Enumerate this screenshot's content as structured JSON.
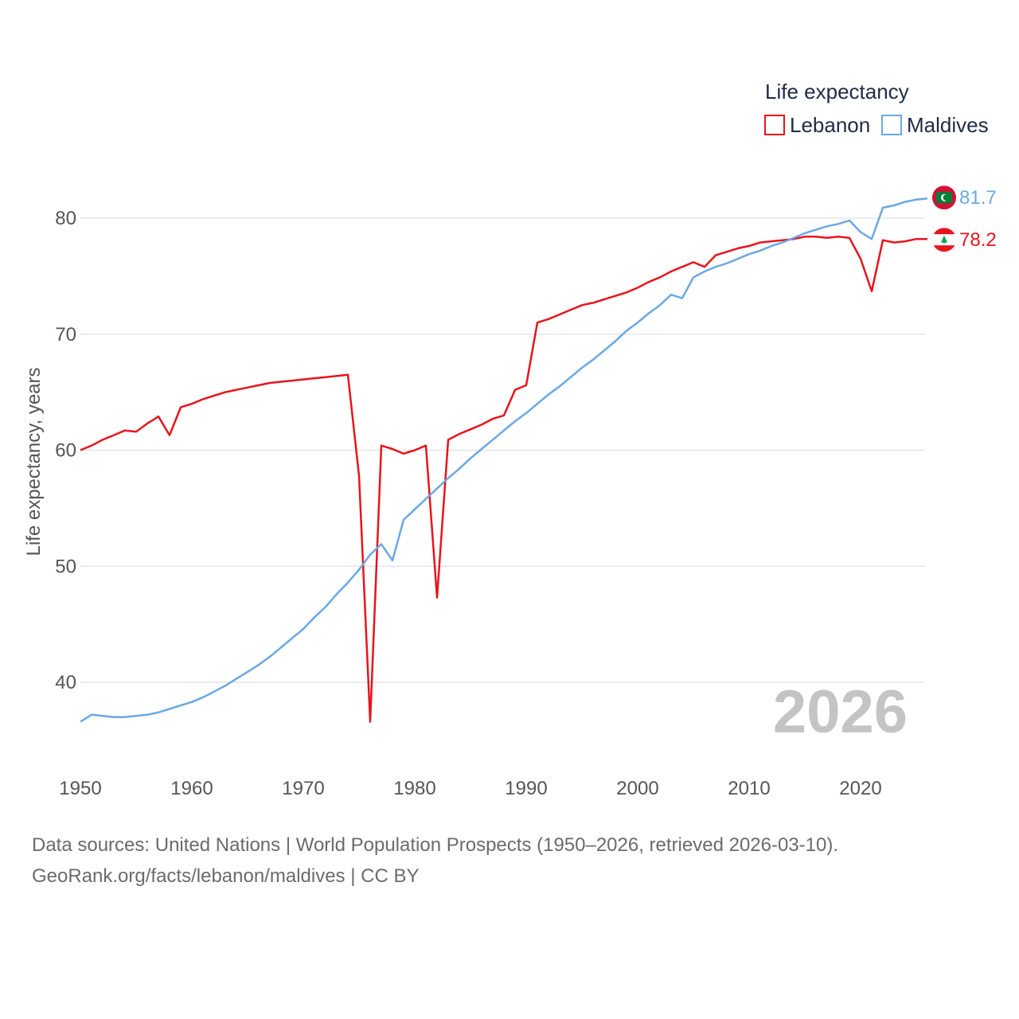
{
  "chart_data": {
    "type": "line",
    "ylabel": "Life expectancy, years",
    "xlabel": "",
    "xlim": [
      1950,
      2026
    ],
    "ylim": [
      35,
      85
    ],
    "xticks": [
      1950,
      1960,
      1970,
      1980,
      1990,
      2000,
      2010,
      2020
    ],
    "yticks": [
      40,
      50,
      60,
      70,
      80
    ],
    "grid": true,
    "legend": {
      "title": "Life expectancy",
      "placement": "top-right"
    },
    "current_year": "2026",
    "series": [
      {
        "name": "Lebanon",
        "color": "#e8141c",
        "end_label": "78.2",
        "flag": "lebanon-flag-icon",
        "points": [
          [
            1950,
            60.0
          ],
          [
            1951,
            60.4
          ],
          [
            1952,
            60.9
          ],
          [
            1953,
            61.3
          ],
          [
            1954,
            61.7
          ],
          [
            1955,
            61.6
          ],
          [
            1956,
            62.3
          ],
          [
            1957,
            62.9
          ],
          [
            1958,
            61.3
          ],
          [
            1959,
            63.7
          ],
          [
            1960,
            64.0
          ],
          [
            1961,
            64.4
          ],
          [
            1962,
            64.7
          ],
          [
            1963,
            65.0
          ],
          [
            1964,
            65.2
          ],
          [
            1965,
            65.4
          ],
          [
            1966,
            65.6
          ],
          [
            1967,
            65.8
          ],
          [
            1968,
            65.9
          ],
          [
            1969,
            66.0
          ],
          [
            1970,
            66.1
          ],
          [
            1971,
            66.2
          ],
          [
            1972,
            66.3
          ],
          [
            1973,
            66.4
          ],
          [
            1974,
            66.5
          ],
          [
            1975,
            57.8
          ],
          [
            1976,
            36.6
          ],
          [
            1977,
            60.4
          ],
          [
            1978,
            60.1
          ],
          [
            1979,
            59.7
          ],
          [
            1980,
            60.0
          ],
          [
            1981,
            60.4
          ],
          [
            1982,
            47.3
          ],
          [
            1983,
            60.9
          ],
          [
            1984,
            61.4
          ],
          [
            1985,
            61.8
          ],
          [
            1986,
            62.2
          ],
          [
            1987,
            62.7
          ],
          [
            1988,
            63.0
          ],
          [
            1989,
            65.2
          ],
          [
            1990,
            65.6
          ],
          [
            1991,
            71.0
          ],
          [
            1992,
            71.3
          ],
          [
            1993,
            71.7
          ],
          [
            1994,
            72.1
          ],
          [
            1995,
            72.5
          ],
          [
            1996,
            72.7
          ],
          [
            1997,
            73.0
          ],
          [
            1998,
            73.3
          ],
          [
            1999,
            73.6
          ],
          [
            2000,
            74.0
          ],
          [
            2001,
            74.5
          ],
          [
            2002,
            74.9
          ],
          [
            2003,
            75.4
          ],
          [
            2004,
            75.8
          ],
          [
            2005,
            76.2
          ],
          [
            2006,
            75.8
          ],
          [
            2007,
            76.8
          ],
          [
            2008,
            77.1
          ],
          [
            2009,
            77.4
          ],
          [
            2010,
            77.6
          ],
          [
            2011,
            77.9
          ],
          [
            2012,
            78.0
          ],
          [
            2013,
            78.1
          ],
          [
            2014,
            78.2
          ],
          [
            2015,
            78.4
          ],
          [
            2016,
            78.4
          ],
          [
            2017,
            78.3
          ],
          [
            2018,
            78.4
          ],
          [
            2019,
            78.3
          ],
          [
            2020,
            76.5
          ],
          [
            2021,
            73.7
          ],
          [
            2022,
            78.1
          ],
          [
            2023,
            77.9
          ],
          [
            2024,
            78.0
          ],
          [
            2025,
            78.2
          ],
          [
            2026,
            78.2
          ]
        ]
      },
      {
        "name": "Maldives",
        "color": "#6aa9e3",
        "end_label": "81.7",
        "flag": "maldives-flag-icon",
        "points": [
          [
            1950,
            36.6
          ],
          [
            1951,
            37.2
          ],
          [
            1952,
            37.1
          ],
          [
            1953,
            37.0
          ],
          [
            1954,
            37.0
          ],
          [
            1955,
            37.1
          ],
          [
            1956,
            37.2
          ],
          [
            1957,
            37.4
          ],
          [
            1958,
            37.7
          ],
          [
            1959,
            38.0
          ],
          [
            1960,
            38.3
          ],
          [
            1961,
            38.7
          ],
          [
            1962,
            39.2
          ],
          [
            1963,
            39.7
          ],
          [
            1964,
            40.3
          ],
          [
            1965,
            40.9
          ],
          [
            1966,
            41.5
          ],
          [
            1967,
            42.2
          ],
          [
            1968,
            43.0
          ],
          [
            1969,
            43.8
          ],
          [
            1970,
            44.6
          ],
          [
            1971,
            45.6
          ],
          [
            1972,
            46.5
          ],
          [
            1973,
            47.6
          ],
          [
            1974,
            48.6
          ],
          [
            1975,
            49.7
          ],
          [
            1976,
            51.0
          ],
          [
            1977,
            51.9
          ],
          [
            1978,
            50.5
          ],
          [
            1979,
            54.0
          ],
          [
            1980,
            54.9
          ],
          [
            1981,
            55.8
          ],
          [
            1982,
            56.7
          ],
          [
            1983,
            57.6
          ],
          [
            1984,
            58.4
          ],
          [
            1985,
            59.3
          ],
          [
            1986,
            60.1
          ],
          [
            1987,
            60.9
          ],
          [
            1988,
            61.7
          ],
          [
            1989,
            62.5
          ],
          [
            1990,
            63.2
          ],
          [
            1991,
            64.0
          ],
          [
            1992,
            64.8
          ],
          [
            1993,
            65.5
          ],
          [
            1994,
            66.3
          ],
          [
            1995,
            67.1
          ],
          [
            1996,
            67.8
          ],
          [
            1997,
            68.6
          ],
          [
            1998,
            69.4
          ],
          [
            1999,
            70.3
          ],
          [
            2000,
            71.0
          ],
          [
            2001,
            71.8
          ],
          [
            2002,
            72.5
          ],
          [
            2003,
            73.4
          ],
          [
            2004,
            73.1
          ],
          [
            2005,
            74.9
          ],
          [
            2006,
            75.4
          ],
          [
            2007,
            75.8
          ],
          [
            2008,
            76.1
          ],
          [
            2009,
            76.5
          ],
          [
            2010,
            76.9
          ],
          [
            2011,
            77.2
          ],
          [
            2012,
            77.6
          ],
          [
            2013,
            77.9
          ],
          [
            2014,
            78.3
          ],
          [
            2015,
            78.7
          ],
          [
            2016,
            79.0
          ],
          [
            2017,
            79.3
          ],
          [
            2018,
            79.5
          ],
          [
            2019,
            79.8
          ],
          [
            2020,
            78.8
          ],
          [
            2021,
            78.2
          ],
          [
            2022,
            80.9
          ],
          [
            2023,
            81.1
          ],
          [
            2024,
            81.4
          ],
          [
            2025,
            81.6
          ],
          [
            2026,
            81.7
          ]
        ]
      }
    ]
  },
  "source": {
    "line1": "Data sources: United Nations | World Population Prospects (1950–2026, retrieved 2026-03-10).",
    "line2": "GeoRank.org/facts/lebanon/maldives | CC BY"
  }
}
